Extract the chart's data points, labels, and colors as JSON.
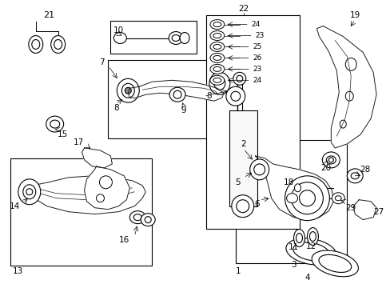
{
  "background_color": "#ffffff",
  "line_color": "#1a1a1a",
  "fig_width": 4.89,
  "fig_height": 3.6,
  "dpi": 100,
  "boxes": {
    "bolt10": [
      0.285,
      0.76,
      0.155,
      0.065
    ],
    "upper_arm": [
      0.285,
      0.62,
      0.22,
      0.135
    ],
    "lower_hub": [
      0.39,
      0.35,
      0.185,
      0.24
    ],
    "shock": [
      0.49,
      0.11,
      0.155,
      0.72
    ],
    "lower_arm": [
      0.025,
      0.39,
      0.235,
      0.215
    ]
  }
}
